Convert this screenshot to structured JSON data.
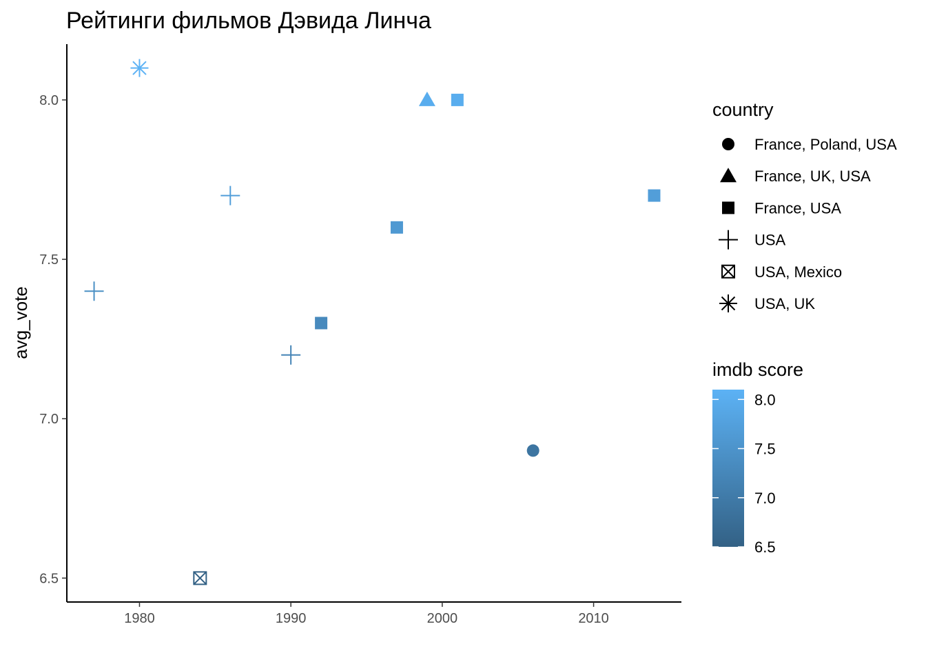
{
  "chart_data": {
    "type": "scatter",
    "title": "Рейтинги фильмов Дэвида Линча",
    "xlabel": "",
    "ylabel": "avg_vote",
    "xlim": [
      1975.2,
      2015.8
    ],
    "ylim": [
      6.425,
      8.175
    ],
    "x_ticks": [
      1980,
      1990,
      2000,
      2010
    ],
    "y_ticks": [
      6.5,
      7.0,
      7.5,
      8.0
    ],
    "x_tick_labels": [
      "1980",
      "1990",
      "2000",
      "2010"
    ],
    "y_tick_labels": [
      "6.5",
      "7.0",
      "7.5",
      "8.0"
    ],
    "grid": false,
    "points": [
      {
        "x": 1977,
        "y": 7.4,
        "country": "USA",
        "imdb_score": 7.4
      },
      {
        "x": 1980,
        "y": 8.1,
        "country": "USA, UK",
        "imdb_score": 8.1
      },
      {
        "x": 1984,
        "y": 6.5,
        "country": "USA, Mexico",
        "imdb_score": 6.5
      },
      {
        "x": 1986,
        "y": 7.7,
        "country": "USA",
        "imdb_score": 7.7
      },
      {
        "x": 1990,
        "y": 7.2,
        "country": "USA",
        "imdb_score": 7.2
      },
      {
        "x": 1992,
        "y": 7.3,
        "country": "France, USA",
        "imdb_score": 7.3
      },
      {
        "x": 1997,
        "y": 7.6,
        "country": "France, USA",
        "imdb_score": 7.6
      },
      {
        "x": 1999,
        "y": 8.0,
        "country": "France, UK, USA",
        "imdb_score": 8.0
      },
      {
        "x": 2001,
        "y": 8.0,
        "country": "France, USA",
        "imdb_score": 8.0
      },
      {
        "x": 2006,
        "y": 6.9,
        "country": "France, Poland, USA",
        "imdb_score": 6.9
      },
      {
        "x": 2014,
        "y": 7.7,
        "country": "France, USA",
        "imdb_score": 7.7
      }
    ],
    "shape_legend": {
      "title": "country",
      "items": [
        {
          "label": "France, Poland, USA",
          "shape": "circle"
        },
        {
          "label": "France, UK, USA",
          "shape": "triangle"
        },
        {
          "label": "France, USA",
          "shape": "square"
        },
        {
          "label": "USA",
          "shape": "plus"
        },
        {
          "label": "USA, Mexico",
          "shape": "boxed-x"
        },
        {
          "label": "USA, UK",
          "shape": "asterisk"
        }
      ]
    },
    "color_legend": {
      "title": "imdb score",
      "range": [
        6.5,
        8.1
      ],
      "low_color": "#336185",
      "high_color": "#5cb2f5",
      "ticks": [
        6.5,
        7.0,
        7.5,
        8.0
      ],
      "tick_labels": [
        "6.5",
        "7.0",
        "7.5",
        "8.0"
      ]
    }
  }
}
